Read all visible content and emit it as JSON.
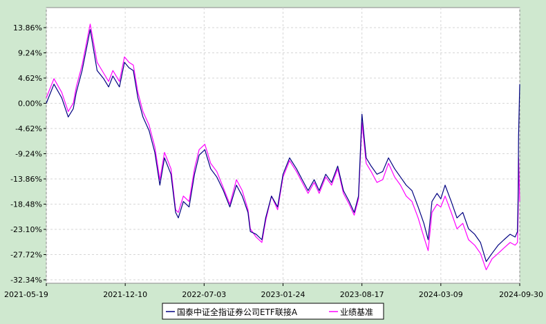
{
  "chart_data": {
    "type": "line",
    "title": "",
    "xlabel": "",
    "ylabel": "",
    "x_tick_labels": [
      "2021-05-19",
      "2021-12-10",
      "2022-07-03",
      "2023-01-24",
      "2023-08-17",
      "2024-03-09",
      "2024-09-30"
    ],
    "y_tick_labels": [
      "13.86%",
      "9.24%",
      "4.62%",
      "0.00%",
      "-4.62%",
      "-9.24%",
      "-13.86%",
      "-18.48%",
      "-23.10%",
      "-27.72%",
      "-32.34%"
    ],
    "ylim": [
      -32.34,
      13.86
    ],
    "xlim": [
      "2021-05-19",
      "2024-09-30"
    ],
    "grid": true,
    "legend_position": "bottom",
    "series": [
      {
        "name": "国泰中证全指证券公司ETF联接A",
        "color": "#000080",
        "x": [
          "2021-05-19",
          "2021-06-08",
          "2021-06-28",
          "2021-07-15",
          "2021-07-28",
          "2021-08-05",
          "2021-08-20",
          "2021-09-10",
          "2021-09-28",
          "2021-10-15",
          "2021-10-28",
          "2021-11-08",
          "2021-11-25",
          "2021-12-08",
          "2021-12-20",
          "2021-12-31",
          "2022-01-12",
          "2022-01-25",
          "2022-02-10",
          "2022-02-25",
          "2022-03-10",
          "2022-03-22",
          "2022-04-08",
          "2022-04-20",
          "2022-04-27",
          "2022-05-10",
          "2022-05-25",
          "2022-06-08",
          "2022-06-20",
          "2022-07-05",
          "2022-07-20",
          "2022-08-05",
          "2022-08-22",
          "2022-09-08",
          "2022-09-25",
          "2022-10-10",
          "2022-10-25",
          "2022-10-31",
          "2022-11-15",
          "2022-11-30",
          "2022-12-10",
          "2022-12-25",
          "2023-01-10",
          "2023-01-24",
          "2023-02-10",
          "2023-02-28",
          "2023-03-15",
          "2023-03-30",
          "2023-04-15",
          "2023-04-28",
          "2023-05-15",
          "2023-05-30",
          "2023-06-15",
          "2023-06-30",
          "2023-07-15",
          "2023-07-28",
          "2023-08-08",
          "2023-08-17",
          "2023-08-28",
          "2023-09-10",
          "2023-09-25",
          "2023-10-10",
          "2023-10-25",
          "2023-11-10",
          "2023-11-25",
          "2023-12-10",
          "2023-12-25",
          "2024-01-10",
          "2024-01-25",
          "2024-02-05",
          "2024-02-15",
          "2024-02-28",
          "2024-03-09",
          "2024-03-20",
          "2024-04-05",
          "2024-04-20",
          "2024-05-05",
          "2024-05-20",
          "2024-06-05",
          "2024-06-20",
          "2024-07-05",
          "2024-07-20",
          "2024-08-05",
          "2024-08-20",
          "2024-09-05",
          "2024-09-18",
          "2024-09-24",
          "2024-09-26",
          "2024-09-27",
          "2024-09-30"
        ],
        "values": [
          0.0,
          3.5,
          1.0,
          -2.5,
          -1.0,
          2.0,
          6.0,
          13.5,
          6.0,
          4.5,
          3.0,
          5.0,
          3.0,
          7.5,
          6.5,
          6.0,
          1.0,
          -2.5,
          -5.0,
          -9.0,
          -15.0,
          -10.0,
          -13.0,
          -20.0,
          -21.0,
          -18.0,
          -19.0,
          -13.0,
          -9.5,
          -8.5,
          -12.0,
          -13.5,
          -16.0,
          -19.0,
          -15.0,
          -17.0,
          -20.0,
          -23.5,
          -24.0,
          -25.0,
          -21.0,
          -17.0,
          -19.0,
          -13.0,
          -10.0,
          -12.0,
          -14.0,
          -16.0,
          -14.0,
          -16.0,
          -13.0,
          -14.5,
          -11.5,
          -16.0,
          -18.0,
          -20.0,
          -17.0,
          -2.0,
          -10.0,
          -11.5,
          -13.0,
          -12.5,
          -10.0,
          -12.0,
          -13.5,
          -15.0,
          -16.0,
          -19.0,
          -22.0,
          -25.0,
          -18.0,
          -16.5,
          -17.5,
          -15.0,
          -18.0,
          -21.0,
          -20.0,
          -23.0,
          -24.0,
          -25.5,
          -29.0,
          -27.5,
          -26.0,
          -25.0,
          -24.0,
          -24.5,
          -23.5,
          -16.0,
          -6.0,
          3.5
        ]
      },
      {
        "name": "业绩基准",
        "color": "#ff00ff",
        "x": [
          "2021-05-19",
          "2021-06-08",
          "2021-06-28",
          "2021-07-15",
          "2021-07-28",
          "2021-08-05",
          "2021-08-20",
          "2021-09-10",
          "2021-09-28",
          "2021-10-15",
          "2021-10-28",
          "2021-11-08",
          "2021-11-25",
          "2021-12-08",
          "2021-12-20",
          "2021-12-31",
          "2022-01-12",
          "2022-01-25",
          "2022-02-10",
          "2022-02-25",
          "2022-03-10",
          "2022-03-22",
          "2022-04-08",
          "2022-04-20",
          "2022-04-27",
          "2022-05-10",
          "2022-05-25",
          "2022-06-08",
          "2022-06-20",
          "2022-07-05",
          "2022-07-20",
          "2022-08-05",
          "2022-08-22",
          "2022-09-08",
          "2022-09-25",
          "2022-10-10",
          "2022-10-25",
          "2022-10-31",
          "2022-11-15",
          "2022-11-30",
          "2022-12-10",
          "2022-12-25",
          "2023-01-10",
          "2023-01-24",
          "2023-02-10",
          "2023-02-28",
          "2023-03-15",
          "2023-03-30",
          "2023-04-15",
          "2023-04-28",
          "2023-05-15",
          "2023-05-30",
          "2023-06-15",
          "2023-06-30",
          "2023-07-15",
          "2023-07-28",
          "2023-08-08",
          "2023-08-17",
          "2023-08-28",
          "2023-09-10",
          "2023-09-25",
          "2023-10-10",
          "2023-10-25",
          "2023-11-10",
          "2023-11-25",
          "2023-12-10",
          "2023-12-25",
          "2024-01-10",
          "2024-01-25",
          "2024-02-05",
          "2024-02-15",
          "2024-02-28",
          "2024-03-09",
          "2024-03-20",
          "2024-04-05",
          "2024-04-20",
          "2024-05-05",
          "2024-05-20",
          "2024-06-05",
          "2024-06-20",
          "2024-07-05",
          "2024-07-20",
          "2024-08-05",
          "2024-08-20",
          "2024-09-05",
          "2024-09-18",
          "2024-09-24",
          "2024-09-26",
          "2024-09-27",
          "2024-09-30"
        ],
        "values": [
          1.0,
          4.5,
          2.0,
          -1.5,
          0.0,
          3.0,
          7.0,
          14.5,
          7.5,
          5.5,
          4.0,
          6.0,
          4.0,
          8.5,
          7.5,
          7.0,
          2.0,
          -1.5,
          -4.0,
          -8.0,
          -14.0,
          -9.0,
          -12.0,
          -19.5,
          -20.0,
          -17.0,
          -18.0,
          -12.0,
          -8.5,
          -7.5,
          -11.0,
          -12.5,
          -15.5,
          -18.5,
          -14.0,
          -16.0,
          -19.5,
          -23.0,
          -24.5,
          -25.5,
          -21.5,
          -17.0,
          -19.5,
          -13.5,
          -10.5,
          -12.5,
          -14.5,
          -16.5,
          -14.5,
          -16.5,
          -13.5,
          -15.0,
          -12.0,
          -16.5,
          -18.5,
          -20.5,
          -17.5,
          -3.5,
          -11.0,
          -12.5,
          -14.5,
          -14.0,
          -11.0,
          -13.5,
          -15.0,
          -17.0,
          -18.0,
          -21.0,
          -24.5,
          -27.0,
          -20.0,
          -18.5,
          -19.0,
          -17.0,
          -20.0,
          -23.0,
          -22.0,
          -25.0,
          -26.0,
          -27.5,
          -30.5,
          -28.5,
          -27.5,
          -26.5,
          -25.5,
          -26.0,
          -25.5,
          -20.0,
          -10.0,
          -18.0
        ]
      }
    ]
  }
}
